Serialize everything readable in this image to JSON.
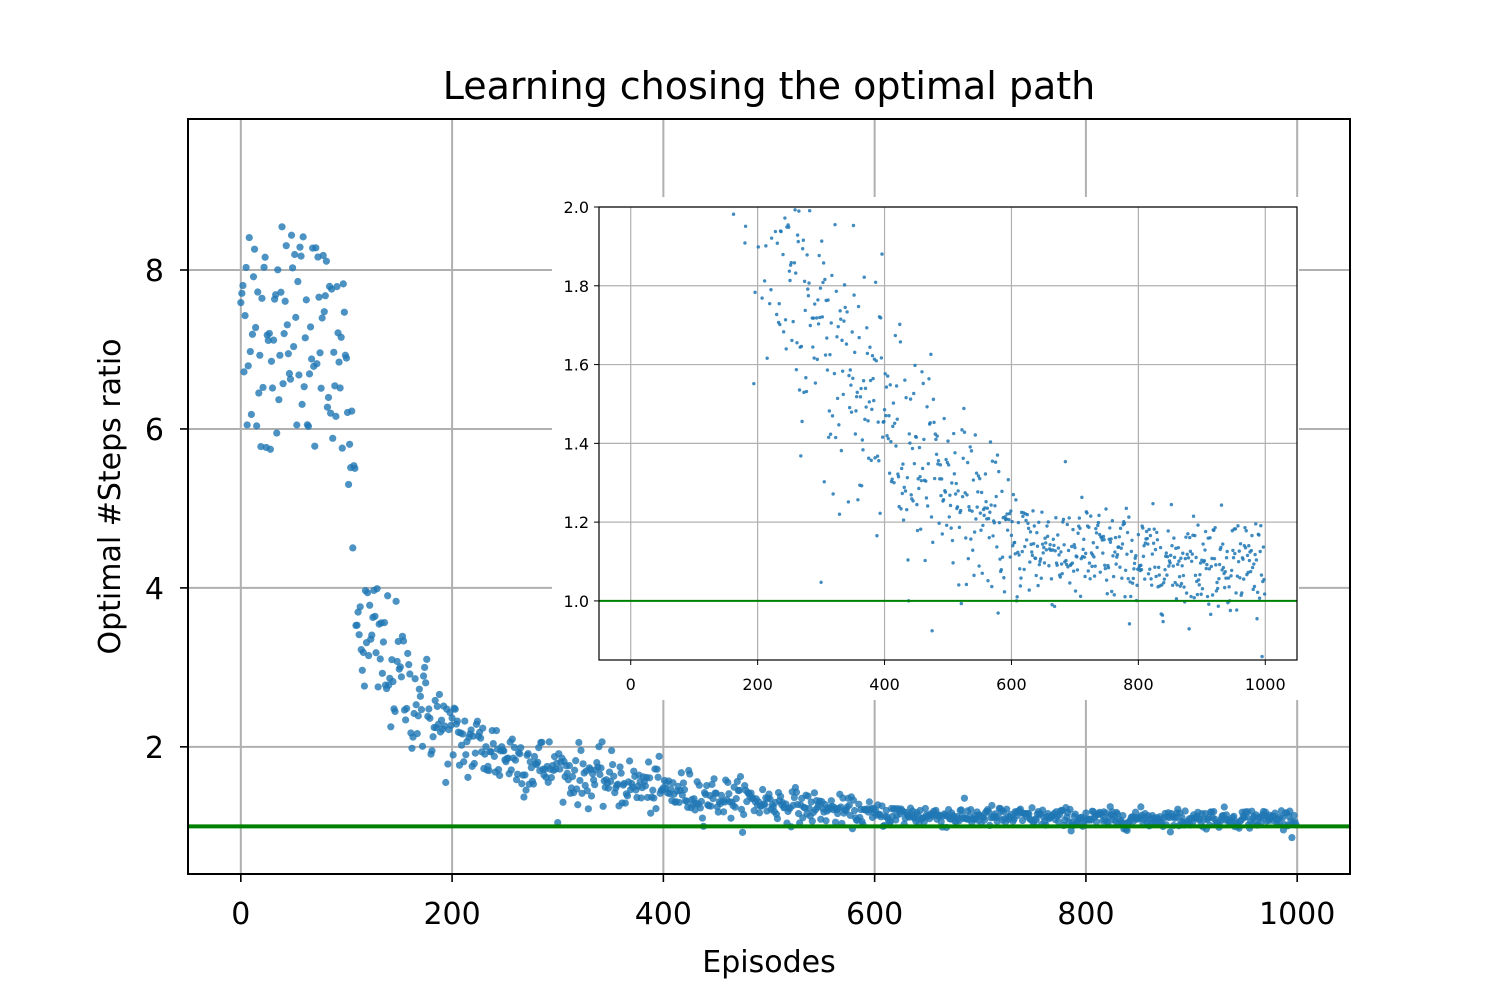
{
  "chart_data": [
    {
      "type": "scatter",
      "title": "Learning chosing the optimal path",
      "xlabel": "Episodes",
      "ylabel": "Optimal #Steps ratio",
      "xlim": [
        -50,
        1050
      ],
      "ylim": [
        0.4,
        9.9
      ],
      "xticks": [
        0,
        200,
        400,
        600,
        800,
        1000
      ],
      "yticks": [
        2,
        4,
        6,
        8
      ],
      "grid": true,
      "point_color": "#1f77b4",
      "reference_line": {
        "y": 1.0,
        "color": "#008000"
      },
      "trend": [
        {
          "x": 0,
          "y": 7.2,
          "spread": 1.4
        },
        {
          "x": 100,
          "y": 7.0,
          "spread": 1.3
        },
        {
          "x": 110,
          "y": 3.5,
          "spread": 0.7
        },
        {
          "x": 200,
          "y": 2.1,
          "spread": 0.35
        },
        {
          "x": 300,
          "y": 1.7,
          "spread": 0.25
        },
        {
          "x": 400,
          "y": 1.45,
          "spread": 0.2
        },
        {
          "x": 500,
          "y": 1.3,
          "spread": 0.15
        },
        {
          "x": 600,
          "y": 1.15,
          "spread": 0.1
        },
        {
          "x": 800,
          "y": 1.1,
          "spread": 0.08
        },
        {
          "x": 1000,
          "y": 1.1,
          "spread": 0.08
        }
      ],
      "n_points": 1000
    },
    {
      "type": "scatter",
      "title": "",
      "xlabel": "",
      "ylabel": "",
      "xlim": [
        -50,
        1050
      ],
      "ylim": [
        0.85,
        2.0
      ],
      "xticks": [
        0,
        200,
        400,
        600,
        800,
        1000
      ],
      "yticks": [
        1.0,
        1.2,
        1.4,
        1.6,
        1.8,
        2.0
      ],
      "ytick_labels": [
        "1.0",
        "1.2",
        "1.4",
        "1.6",
        "1.8",
        "2.0"
      ],
      "grid": true,
      "point_color": "#1f77b4",
      "reference_line": {
        "y": 1.0,
        "color": "#008000"
      }
    }
  ]
}
